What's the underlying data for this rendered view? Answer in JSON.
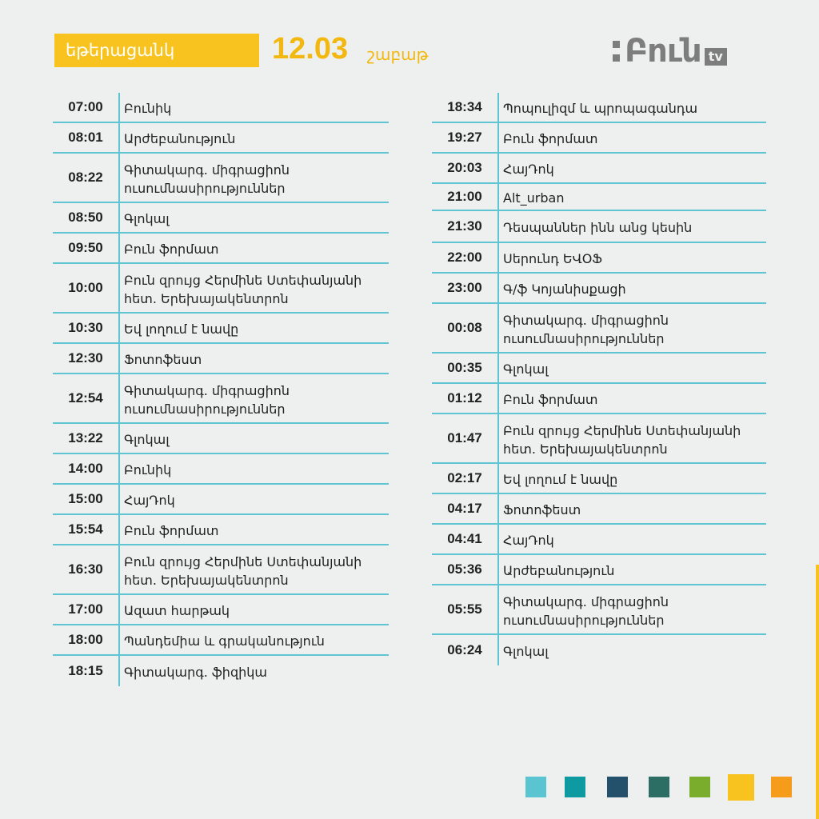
{
  "header": {
    "tag": "եթերացանկ",
    "date": "12.03",
    "day": "շաբաթ",
    "logo_word": "Բուն",
    "logo_tv": "tv"
  },
  "schedule": {
    "left": [
      {
        "time": "07:00",
        "title": "Բունիկ"
      },
      {
        "time": "08:01",
        "title": "Արժեբանություն"
      },
      {
        "time": "08:22",
        "title": "Գիտակարգ. միգրացիոն ուսումնասիրություններ"
      },
      {
        "time": "08:50",
        "title": "Գլոկալ"
      },
      {
        "time": "09:50",
        "title": "Բուն ֆորմատ"
      },
      {
        "time": "10:00",
        "title": "Բուն զրույց Հերմինե Ստեփանյանի հետ. Երեխայակենտրոն"
      },
      {
        "time": "10:30",
        "title": "Եվ լողում է նավը"
      },
      {
        "time": "12:30",
        "title": "Ֆոտոֆեստ"
      },
      {
        "time": "12:54",
        "title": "Գիտակարգ. միգրացիոն ուսումնասիրություններ"
      },
      {
        "time": "13:22",
        "title": "Գլոկալ"
      },
      {
        "time": "14:00",
        "title": "Բունիկ"
      },
      {
        "time": "15:00",
        "title": "ՀայԴոկ"
      },
      {
        "time": "15:54",
        "title": "Բուն ֆորմատ"
      },
      {
        "time": "16:30",
        "title": "Բուն զրույց Հերմինե Ստեփանյանի հետ.  Երեխայակենտրոն"
      },
      {
        "time": "17:00",
        "title": "Ազատ հարթակ"
      },
      {
        "time": "18:00",
        "title": "Պանդեմիա և գրականություն"
      },
      {
        "time": "18:15",
        "title": "Գիտակարգ. ֆիզիկա"
      }
    ],
    "right": [
      {
        "time": "18:34",
        "title": "Պոպուլիզմ և պրոպագանդա"
      },
      {
        "time": "19:27",
        "title": "Բուն ֆորմատ"
      },
      {
        "time": "20:03",
        "title": "ՀայԴոկ"
      },
      {
        "time": "21:00",
        "title": "Alt_urban"
      },
      {
        "time": "21:30",
        "title": "Դեսպաններ ինն անց կեսին"
      },
      {
        "time": "22:00",
        "title": "Սերունդ ԵՎՕՖ"
      },
      {
        "time": "23:00",
        "title": "Գ/ֆ Կոյանիսքացի"
      },
      {
        "time": "00:08",
        "title": "Գիտակարգ. միգրացիոն ուսումնասիրություններ"
      },
      {
        "time": "00:35",
        "title": "Գլոկալ"
      },
      {
        "time": "01:12",
        "title": "Բուն ֆորմատ"
      },
      {
        "time": "01:47",
        "title": "Բուն զրույց Հերմինե Ստեփանյանի հետ. Երեխայակենտրոն"
      },
      {
        "time": "02:17",
        "title": "Եվ լողում է նավը"
      },
      {
        "time": "04:17",
        "title": "Ֆոտոֆեստ"
      },
      {
        "time": "04:41",
        "title": "ՀայԴոկ"
      },
      {
        "time": "05:36",
        "title": "Արժեբանություն"
      },
      {
        "time": "05:55",
        "title": "Գիտակարգ. միգրացիոն ուսումնասիրություններ"
      },
      {
        "time": "06:24",
        "title": "Գլոկալ"
      }
    ]
  },
  "colors": {
    "accent_yellow": "#f9c31f",
    "line_cyan": "#5fc5d3",
    "swatches": [
      "#5bc4d1",
      "#0d9aa0",
      "#23506b",
      "#2c6e63",
      "#7aad2b",
      "#f9c31f",
      "#f59c1a"
    ]
  }
}
